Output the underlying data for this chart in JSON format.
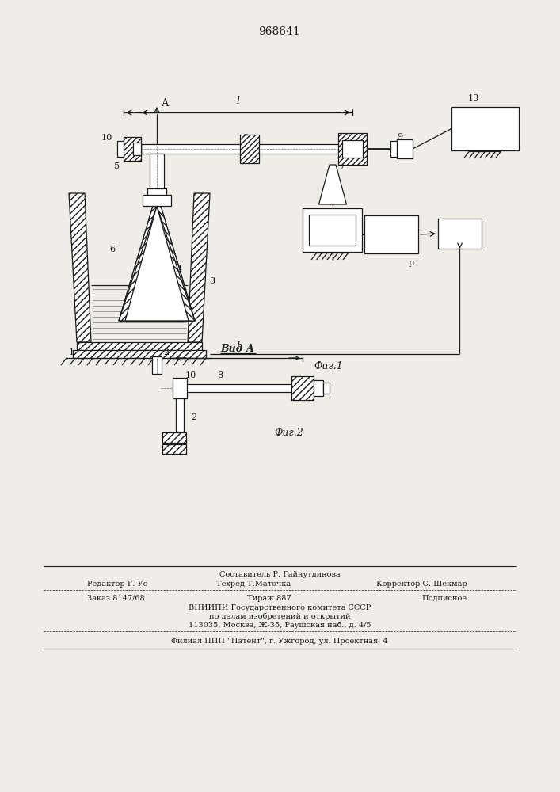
{
  "patent_number": "968641",
  "fig1_label": "Фиг.1",
  "fig2_label": "Фиг.2",
  "vid_a_label": "Вид А",
  "editor_line": "Редактор Г. Ус",
  "compositor_line": "Составитель Р. Гайнутдинова",
  "techred_line": "Техред Т.Маточка",
  "corrector_line": "Корректор С. Шекмар",
  "order_line": "Заказ 8147/68",
  "tirazh_line": "Тираж 887",
  "podpisnoe_line": "Подписное",
  "vnipi_line": "ВНИИПИ Государственного комитета СССР",
  "vnipi_line2": "по делам изобретений и открытий",
  "address_line": "113035, Москва, Ж-35, Раушская наб., д. 4/5",
  "filial_line": "Филиал ППП \"Патент\", г. Ужгород, ул. Проектная, 4",
  "bg_color": "#f0ede8",
  "line_color": "#1a1a1a"
}
